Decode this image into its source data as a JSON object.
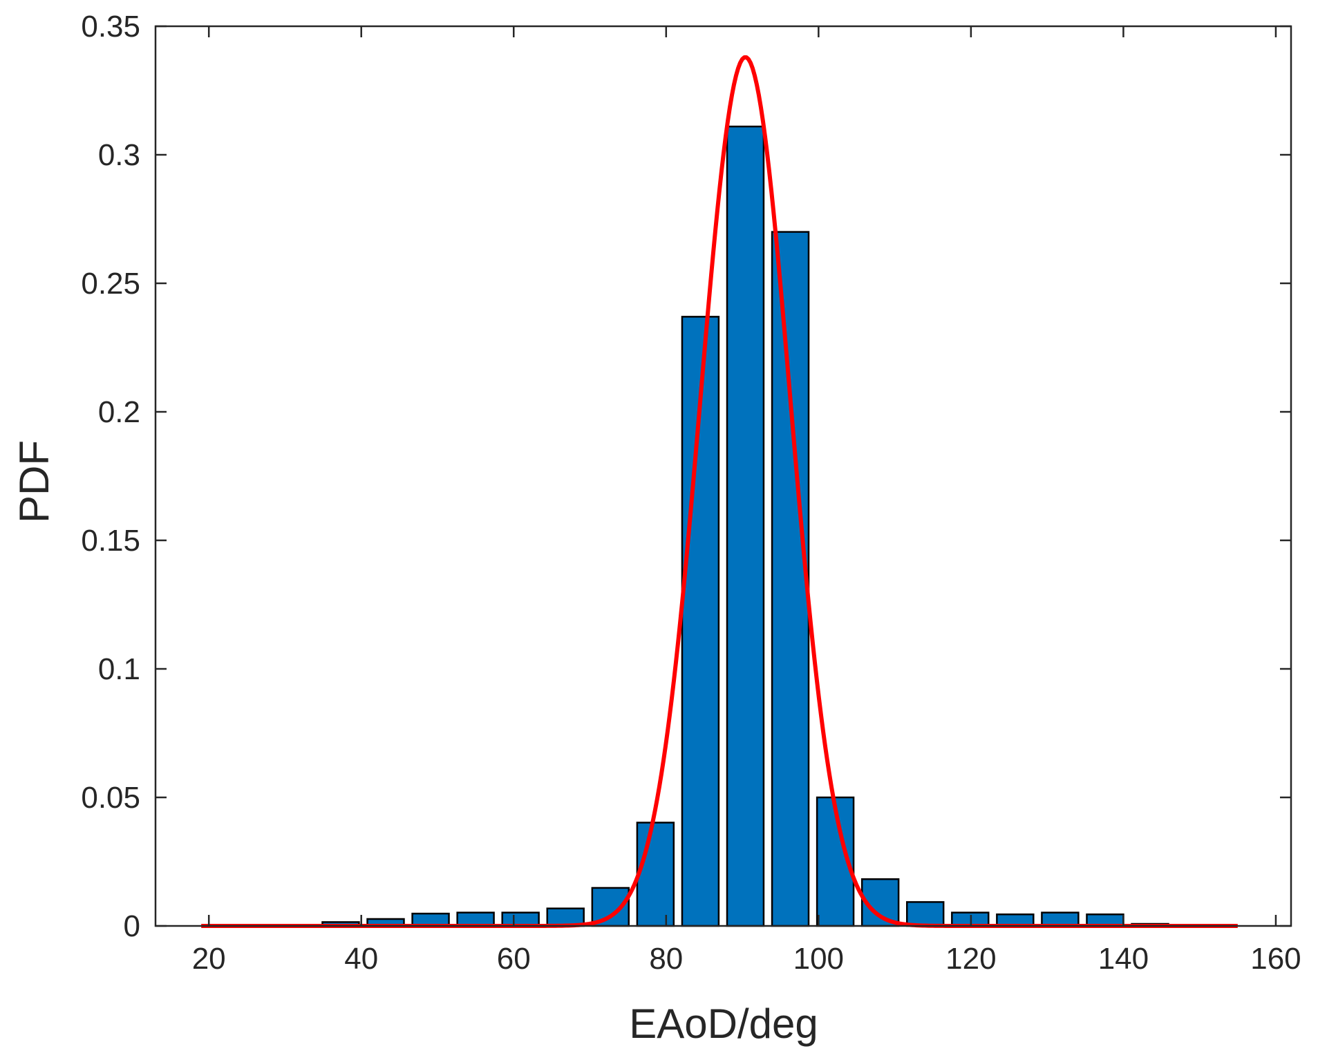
{
  "chart_data": {
    "type": "bar",
    "title": "",
    "xlabel": "EAoD/deg",
    "ylabel": "PDF",
    "xlim": [
      13,
      162
    ],
    "ylim": [
      0,
      0.35
    ],
    "xticks": [
      20,
      40,
      60,
      80,
      100,
      120,
      140,
      160
    ],
    "yticks": [
      0,
      0.05,
      0.1,
      0.15,
      0.2,
      0.25,
      0.3,
      0.35
    ],
    "xtick_labels": [
      "20",
      "40",
      "60",
      "80",
      "100",
      "120",
      "140",
      "160"
    ],
    "ytick_labels": [
      "0",
      "0.05",
      "0.1",
      "0.15",
      "0.2",
      "0.25",
      "0.3",
      "0.35"
    ],
    "grid": false,
    "bin_width": 5.9,
    "bar_width": 4.8,
    "bins": [
      {
        "x": 37.3,
        "y": 0.0015
      },
      {
        "x": 43.2,
        "y": 0.0027
      },
      {
        "x": 49.1,
        "y": 0.0048
      },
      {
        "x": 55.0,
        "y": 0.0052
      },
      {
        "x": 60.9,
        "y": 0.0052
      },
      {
        "x": 66.8,
        "y": 0.0068
      },
      {
        "x": 72.7,
        "y": 0.0148
      },
      {
        "x": 78.6,
        "y": 0.0402
      },
      {
        "x": 84.5,
        "y": 0.237
      },
      {
        "x": 90.4,
        "y": 0.311
      },
      {
        "x": 96.3,
        "y": 0.27
      },
      {
        "x": 102.2,
        "y": 0.05
      },
      {
        "x": 108.1,
        "y": 0.0182
      },
      {
        "x": 114.0,
        "y": 0.0093
      },
      {
        "x": 119.9,
        "y": 0.0052
      },
      {
        "x": 125.8,
        "y": 0.0045
      },
      {
        "x": 131.7,
        "y": 0.0052
      },
      {
        "x": 137.6,
        "y": 0.0045
      },
      {
        "x": 143.5,
        "y": 0.0008
      }
    ],
    "fit_curve": {
      "kind": "gaussian",
      "mean": 90.4,
      "sigma": 5.9,
      "peak": 0.338,
      "x_range": [
        19,
        155
      ]
    },
    "colors": {
      "bar_fill": "#0072bd",
      "bar_edge": "#000000",
      "curve": "#ff0000",
      "axes": "#262626"
    }
  }
}
